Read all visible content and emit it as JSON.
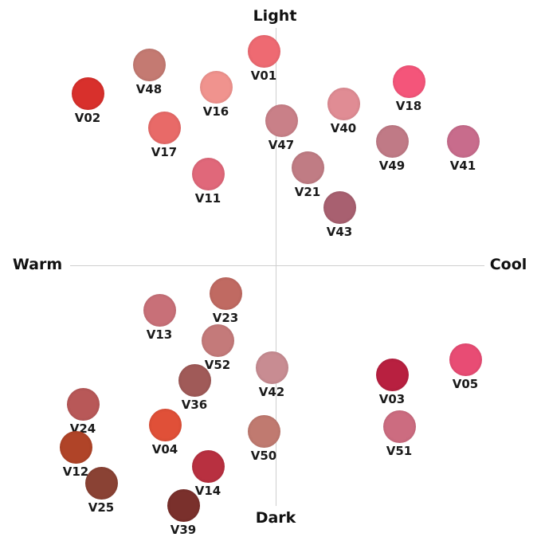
{
  "axes": {
    "top": "Light",
    "bottom": "Dark",
    "left": "Warm",
    "right": "Cool"
  },
  "swatches": {
    "V01": {
      "label": "V01",
      "color": "#ee6a72"
    },
    "V48": {
      "label": "V48",
      "color": "#c47a72"
    },
    "V02": {
      "label": "V02",
      "color": "#d8302c"
    },
    "V16": {
      "label": "V16",
      "color": "#f0938e"
    },
    "V18": {
      "label": "V18",
      "color": "#f4557a"
    },
    "V40": {
      "label": "V40",
      "color": "#e08c94"
    },
    "V47": {
      "label": "V47",
      "color": "#c98088"
    },
    "V17": {
      "label": "V17",
      "color": "#e86a68"
    },
    "V49": {
      "label": "V49",
      "color": "#c07a86"
    },
    "V41": {
      "label": "V41",
      "color": "#c86c8c"
    },
    "V11": {
      "label": "V11",
      "color": "#e0687a"
    },
    "V21": {
      "label": "V21",
      "color": "#c07c84"
    },
    "V43": {
      "label": "V43",
      "color": "#a86070"
    },
    "V23": {
      "label": "V23",
      "color": "#c06a62"
    },
    "V13": {
      "label": "V13",
      "color": "#c87078"
    },
    "V52": {
      "label": "V52",
      "color": "#c47a7a"
    },
    "V42": {
      "label": "V42",
      "color": "#c88c92"
    },
    "V36": {
      "label": "V36",
      "color": "#a05a58"
    },
    "V03": {
      "label": "V03",
      "color": "#b82040"
    },
    "V05": {
      "label": "V05",
      "color": "#e84c74"
    },
    "V24": {
      "label": "V24",
      "color": "#b85858"
    },
    "V04": {
      "label": "V04",
      "color": "#e05038"
    },
    "V51": {
      "label": "V51",
      "color": "#cc6c80"
    },
    "V50": {
      "label": "V50",
      "color": "#c07a70"
    },
    "V12": {
      "label": "V12",
      "color": "#b04428"
    },
    "V14": {
      "label": "V14",
      "color": "#b83040"
    },
    "V25": {
      "label": "V25",
      "color": "#8a4234"
    },
    "V39": {
      "label": "V39",
      "color": "#7a302c"
    }
  }
}
